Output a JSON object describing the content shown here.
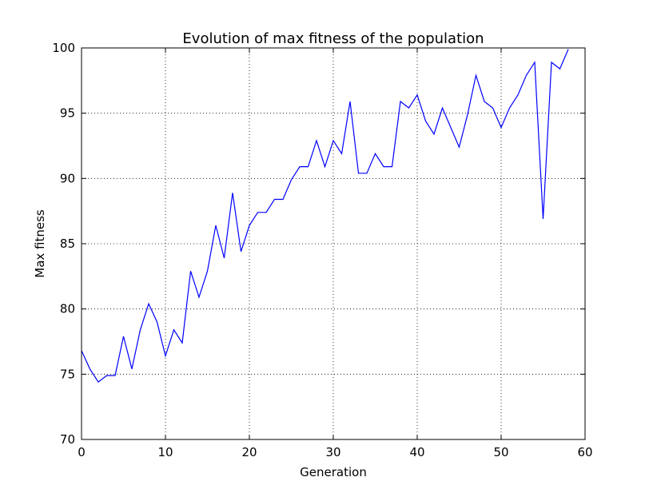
{
  "chart_data": {
    "type": "line",
    "title": "Evolution of max fitness of the population",
    "xlabel": "Generation",
    "ylabel": "Max fitness",
    "xlim": [
      0,
      60
    ],
    "ylim": [
      70,
      100
    ],
    "xticks": [
      0,
      10,
      20,
      30,
      40,
      50,
      60
    ],
    "yticks": [
      70,
      75,
      80,
      85,
      90,
      95,
      100
    ],
    "grid": true,
    "line_color": "#0000ff",
    "series": [
      {
        "x": [
          0,
          1,
          2,
          3,
          4,
          5,
          6,
          7,
          8,
          9,
          10,
          11,
          12,
          13,
          14,
          15,
          16,
          17,
          18,
          19,
          20,
          21,
          22,
          23,
          24,
          25,
          26,
          27,
          28,
          29,
          30,
          31,
          32,
          33,
          34,
          35,
          36,
          37,
          38,
          39,
          40,
          41,
          42,
          43,
          44,
          45,
          46,
          47,
          48,
          49,
          50,
          51,
          52,
          53,
          54,
          55,
          56,
          57,
          58
        ],
        "values": [
          76.8,
          75.4,
          74.4,
          74.9,
          74.9,
          77.9,
          75.4,
          78.4,
          80.4,
          79.0,
          76.4,
          78.4,
          77.4,
          82.9,
          80.9,
          82.9,
          86.4,
          83.9,
          88.9,
          84.4,
          86.4,
          87.4,
          87.4,
          88.4,
          88.4,
          89.9,
          90.9,
          90.9,
          92.9,
          90.9,
          92.9,
          91.9,
          95.9,
          90.4,
          90.4,
          91.9,
          90.9,
          90.9,
          95.9,
          95.4,
          96.4,
          94.4,
          93.4,
          95.4,
          93.9,
          92.4,
          94.9,
          97.9,
          95.9,
          95.4,
          93.9,
          95.4,
          96.4,
          97.9,
          98.9,
          86.9,
          98.9,
          98.4,
          99.9
        ]
      }
    ]
  }
}
